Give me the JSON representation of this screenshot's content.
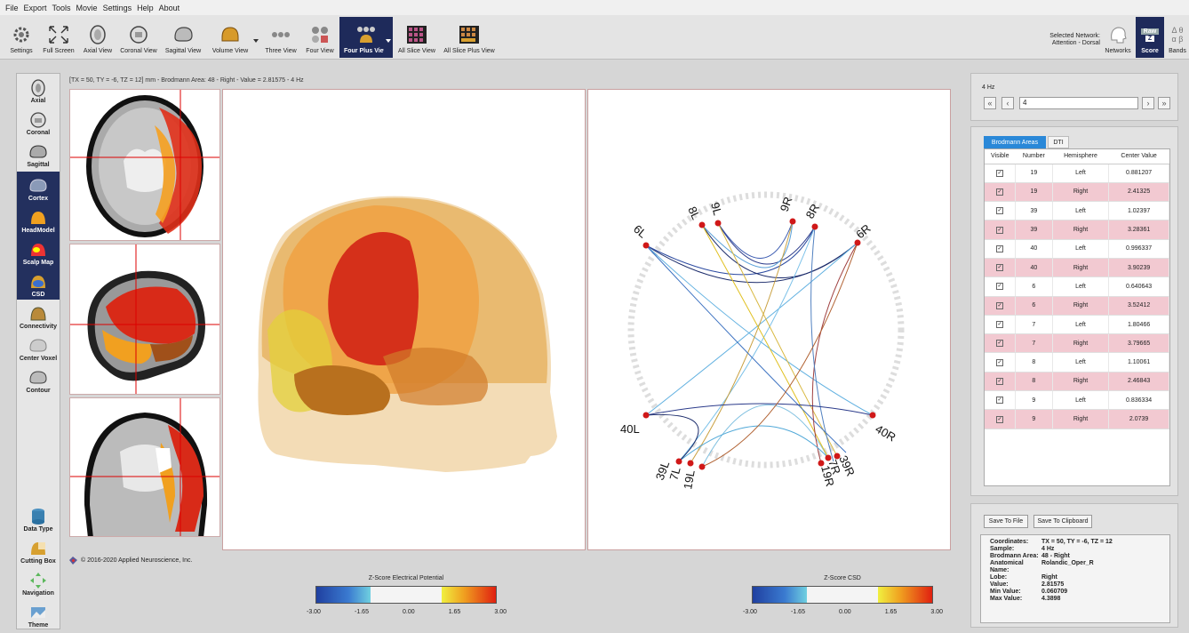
{
  "menu": [
    "File",
    "Export",
    "Tools",
    "Movie",
    "Settings",
    "Help",
    "About"
  ],
  "toolbar": {
    "buttons": [
      {
        "label": "Settings"
      },
      {
        "label": "Full Screen"
      },
      {
        "label": "Axial View"
      },
      {
        "label": "Coronal View"
      },
      {
        "label": "Sagittal View"
      },
      {
        "label": "Volume View"
      },
      {
        "label": "Three View"
      },
      {
        "label": "Four View"
      },
      {
        "label": "Four Plus View"
      },
      {
        "label": "All Slice View"
      },
      {
        "label": "All Slice Plus View"
      }
    ],
    "selected_network_label": "Selected Network:",
    "selected_network_value": "Attention - Dorsal",
    "networks": "Networks",
    "raw": "Raw",
    "z": "Z",
    "score": "Score",
    "bands": "Bands",
    "greek1": "Δ θ",
    "greek2": "α β"
  },
  "left_panel": [
    {
      "label": "Axial"
    },
    {
      "label": "Coronal"
    },
    {
      "label": "Sagittal"
    },
    {
      "label": "Cortex"
    },
    {
      "label": "HeadModel"
    },
    {
      "label": "Scalp Map"
    },
    {
      "label": "CSD"
    },
    {
      "label": "Connectivity"
    },
    {
      "label": "Center Voxel"
    },
    {
      "label": "Contour"
    },
    {
      "label": "Data Type"
    },
    {
      "label": "Cutting Box"
    },
    {
      "label": "Navigation"
    },
    {
      "label": "Theme"
    }
  ],
  "coordinate_line": "[TX = 50, TY = -6, TZ = 12] mm - Brodmann Area: 48 - Right - Value = 2.81575 - 4 Hz",
  "connectivity_labels": [
    "9L",
    "8L",
    "6L",
    "40L",
    "39L",
    "7L",
    "19L",
    "9R",
    "8R",
    "6R",
    "40R",
    "39R",
    "7R",
    "19R"
  ],
  "copyright": "© 2016-2020 Applied Neuroscience, Inc.",
  "colorbar_left": {
    "title": "Z-Score Electrical Potential",
    "ticks": [
      "-3.00",
      "-1.65",
      "0.00",
      "1.65",
      "3.00"
    ]
  },
  "colorbar_right": {
    "title": "Z-Score CSD",
    "ticks": [
      "-3.00",
      "-1.65",
      "0.00",
      "1.65",
      "3.00"
    ]
  },
  "frequency": {
    "label": "4 Hz",
    "value": "4"
  },
  "tabs": [
    "Brodmann Areas",
    "DTI"
  ],
  "table": {
    "headers": [
      "Visible",
      "Number",
      "Hemisphere",
      "Center Value"
    ],
    "rows": [
      {
        "number": "19",
        "hemisphere": "Left",
        "value": "0.881207"
      },
      {
        "number": "19",
        "hemisphere": "Right",
        "value": "2.41325"
      },
      {
        "number": "39",
        "hemisphere": "Left",
        "value": "1.02397"
      },
      {
        "number": "39",
        "hemisphere": "Right",
        "value": "3.28361"
      },
      {
        "number": "40",
        "hemisphere": "Left",
        "value": "0.996337"
      },
      {
        "number": "40",
        "hemisphere": "Right",
        "value": "3.90239"
      },
      {
        "number": "6",
        "hemisphere": "Left",
        "value": "0.640643"
      },
      {
        "number": "6",
        "hemisphere": "Right",
        "value": "3.52412"
      },
      {
        "number": "7",
        "hemisphere": "Left",
        "value": "1.80466"
      },
      {
        "number": "7",
        "hemisphere": "Right",
        "value": "3.79665"
      },
      {
        "number": "8",
        "hemisphere": "Left",
        "value": "1.10061"
      },
      {
        "number": "8",
        "hemisphere": "Right",
        "value": "2.46843"
      },
      {
        "number": "9",
        "hemisphere": "Left",
        "value": "0.836334"
      },
      {
        "number": "9",
        "hemisphere": "Right",
        "value": "2.0739"
      }
    ]
  },
  "buttons": {
    "save_file": "Save To File",
    "save_clipboard": "Save To Clipboard"
  },
  "info": [
    {
      "key": "Coordinates:",
      "value": "TX = 50, TY = -6, TZ = 12"
    },
    {
      "key": "Sample:",
      "value": "4 Hz"
    },
    {
      "key": "Brodmann Area:",
      "value": "48 - Right"
    },
    {
      "key": "Anatomical Name:",
      "value": "Rolandic_Oper_R"
    },
    {
      "key": "Lobe:",
      "value": "Right"
    },
    {
      "key": "Value:",
      "value": "2.81575"
    },
    {
      "key": "Min Value:",
      "value": "0.060709"
    },
    {
      "key": "Max Value:",
      "value": "4.3898"
    }
  ]
}
